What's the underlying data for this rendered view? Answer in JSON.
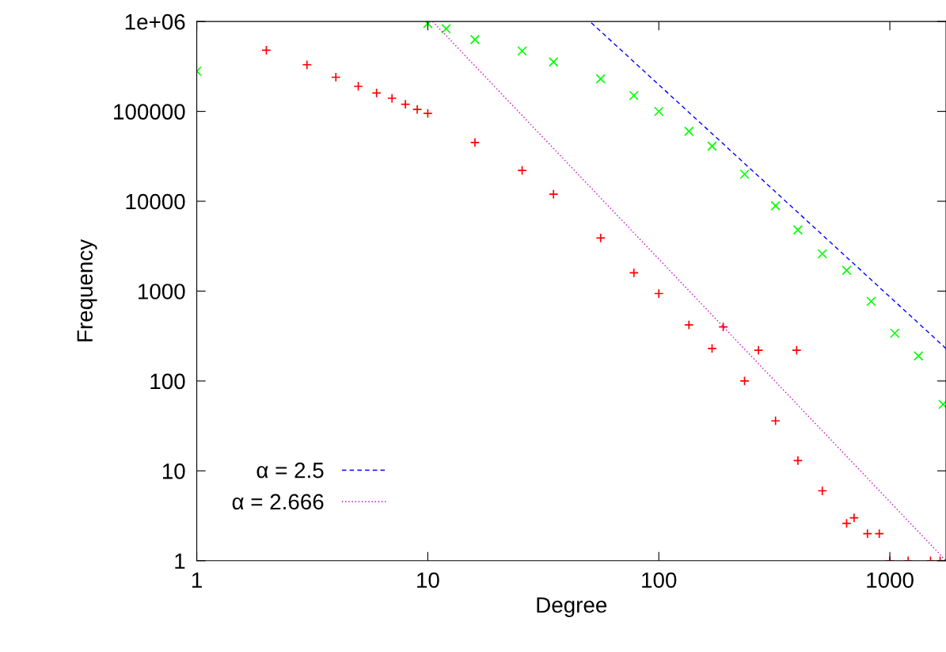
{
  "chart_data": {
    "type": "scatter",
    "xlabel": "Degree",
    "ylabel": "Frequency",
    "log": "xy",
    "grid": false,
    "legend": "bottom left",
    "xlim": [
      1,
      1750
    ],
    "ylim": [
      1,
      1000000
    ],
    "xticks": [
      1,
      10,
      100,
      1000
    ],
    "yticks": [
      1,
      10,
      100,
      1000,
      10000,
      100000,
      {
        "value": 1000000,
        "label": "1e+06"
      }
    ],
    "series": [
      {
        "marker": "plus",
        "color": "#ff0000",
        "x": [
          2,
          3,
          4,
          5,
          6,
          7,
          8,
          9,
          10,
          16,
          25.6,
          35,
          56,
          78,
          100,
          135,
          170,
          190,
          235,
          270,
          320,
          395,
          400,
          510,
          650,
          700,
          800,
          900,
          1000,
          1200,
          1500,
          1650
        ],
        "values": [
          480000,
          330000,
          240000,
          190000,
          160000,
          140000,
          120000,
          105000,
          95000,
          45000,
          22000,
          12000,
          3900,
          1600,
          940,
          420,
          230,
          400,
          100,
          220,
          36,
          220,
          13,
          6,
          2.6,
          3,
          2,
          2,
          1,
          1,
          1,
          1
        ]
      },
      {
        "marker": "cross",
        "color": "#00ff00",
        "x": [
          1,
          10,
          12,
          16,
          25.6,
          35,
          56,
          78,
          100,
          135,
          170,
          235,
          320,
          400,
          510,
          650,
          830,
          1050,
          1330,
          1700
        ],
        "values": [
          280000,
          950000,
          830000,
          630000,
          470000,
          355000,
          230000,
          150000,
          100000,
          60000,
          41000,
          20000,
          8900,
          4800,
          2600,
          1700,
          770,
          340,
          190,
          55
        ]
      },
      {
        "type": "line",
        "name": "α = 2.5",
        "color": "#0000ff",
        "line_style": "dashed",
        "x": [
          51,
          1750
        ],
        "values": [
          970000,
          230
        ]
      },
      {
        "type": "line",
        "name": "α = 2.666",
        "color": "#cc00cc",
        "line_style": "dotted",
        "x": [
          10.5,
          1750
        ],
        "values": [
          1000000,
          1
        ]
      }
    ]
  }
}
